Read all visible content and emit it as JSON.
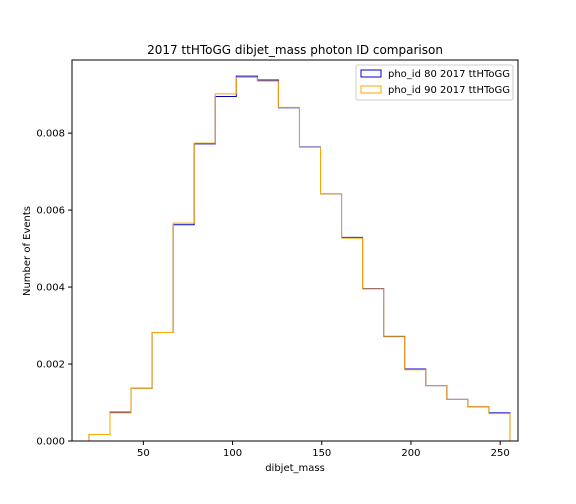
{
  "chart_data": {
    "type": "histogram-step",
    "title": "2017 ttHToGG dibjet_mass photon ID comparison",
    "xlabel": "dibjet_mass",
    "ylabel": "Number of Events",
    "xlim": [
      10,
      260
    ],
    "ylim": [
      0,
      0.0099
    ],
    "xticks": [
      50,
      100,
      150,
      200,
      250
    ],
    "yticks": [
      0.0,
      0.002,
      0.004,
      0.006,
      0.008
    ],
    "ytick_labels": [
      "0.000",
      "0.002",
      "0.004",
      "0.006",
      "0.008"
    ],
    "grid": false,
    "legend_position": "top-right",
    "bin_edges": [
      19.5,
      31.3,
      43.1,
      54.9,
      66.7,
      78.5,
      90.3,
      102.1,
      113.9,
      125.7,
      137.5,
      149.3,
      161.1,
      172.9,
      184.7,
      196.5,
      208.3,
      220.1,
      231.9,
      243.7,
      255.5
    ],
    "series": [
      {
        "name": "pho_id 80 2017 ttHToGG",
        "color": "#0000cc",
        "values": [
          0.00017,
          0.00075,
          0.00137,
          0.00282,
          0.00562,
          0.00772,
          0.00895,
          0.00948,
          0.00938,
          0.00866,
          0.00764,
          0.00642,
          0.00529,
          0.00396,
          0.00272,
          0.00187,
          0.00144,
          0.00108,
          0.00089,
          0.00073
        ]
      },
      {
        "name": "pho_id 90 2017 ttHToGG",
        "color": "#ffa500",
        "values": [
          0.00017,
          0.00073,
          0.00137,
          0.00282,
          0.00566,
          0.00774,
          0.00902,
          0.00945,
          0.00935,
          0.00867,
          0.00763,
          0.00642,
          0.00527,
          0.00395,
          0.00271,
          0.00185,
          0.00144,
          0.00108,
          0.00089,
          0.00071
        ]
      }
    ]
  }
}
